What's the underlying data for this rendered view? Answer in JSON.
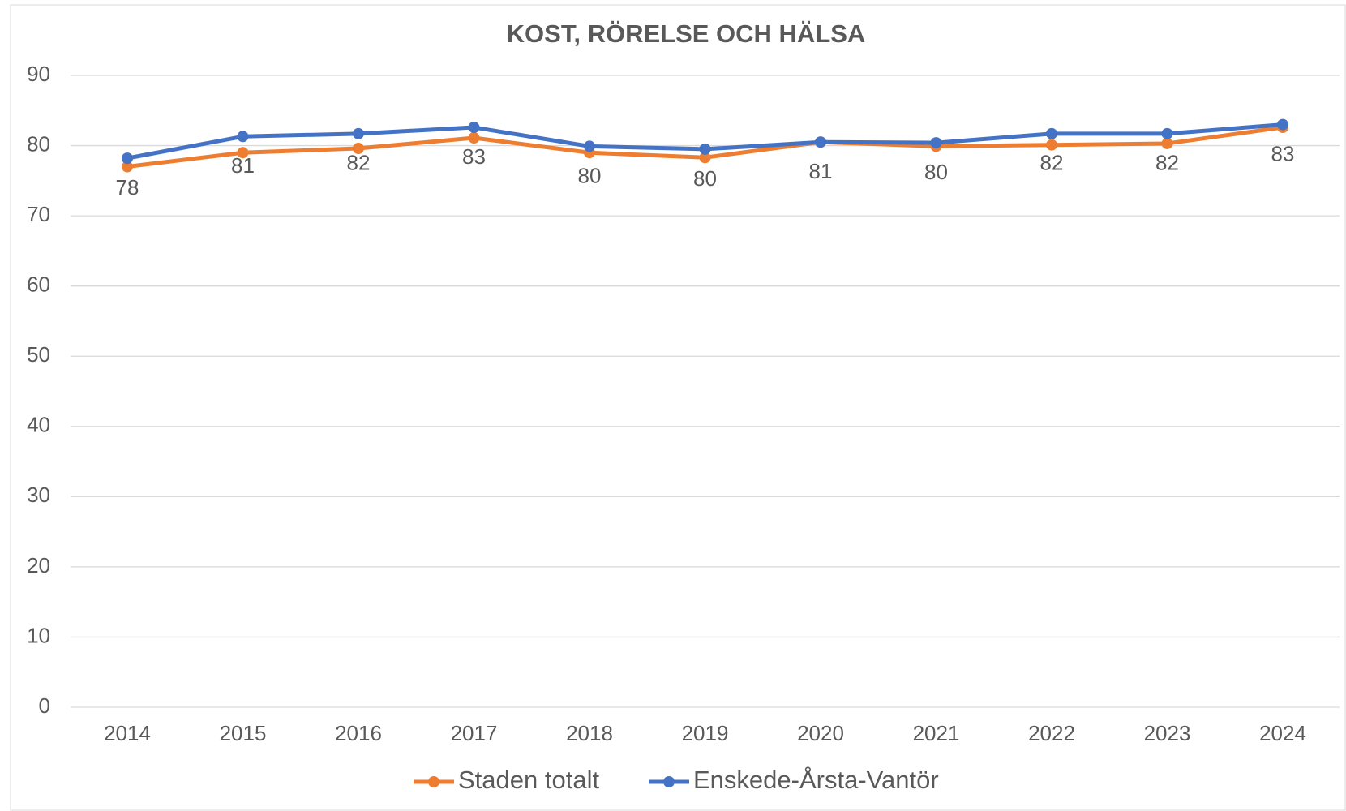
{
  "chart_data": {
    "type": "line",
    "title": "KOST, RÖRELSE OCH HÄLSA",
    "categories": [
      "2014",
      "2015",
      "2016",
      "2017",
      "2018",
      "2019",
      "2020",
      "2021",
      "2022",
      "2023",
      "2024"
    ],
    "series": [
      {
        "name": "Staden totalt",
        "color": "#ed7d31",
        "values": [
          77,
          79,
          79.6,
          81.1,
          79,
          78.3,
          80.5,
          79.9,
          80.1,
          80.3,
          82.6
        ]
      },
      {
        "name": "Enskede-Årsta-Vantör",
        "color": "#4472c4",
        "values": [
          78.2,
          81.3,
          81.7,
          82.6,
          79.9,
          79.5,
          80.5,
          80.4,
          81.7,
          81.7,
          83
        ],
        "value_labels": [
          "78",
          "81",
          "82",
          "83",
          "80",
          "80",
          "81",
          "80",
          "82",
          "82",
          "83"
        ]
      }
    ],
    "ylim": [
      0,
      90
    ],
    "yticks": [
      0,
      10,
      20,
      30,
      40,
      50,
      60,
      70,
      80,
      90
    ],
    "grid": true,
    "legend": "bottom"
  }
}
